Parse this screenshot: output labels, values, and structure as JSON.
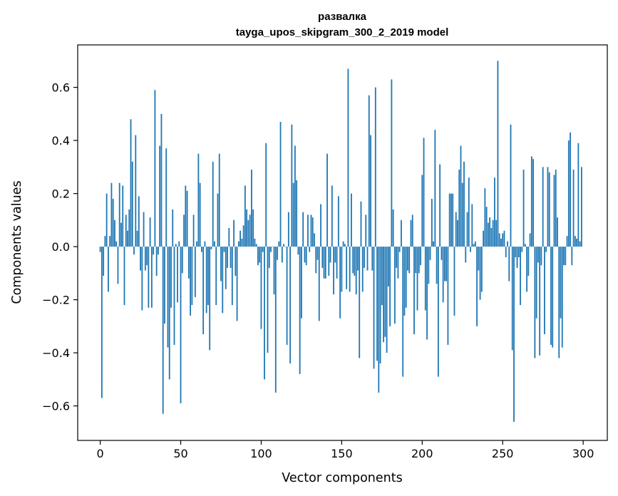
{
  "chart_data": {
    "type": "bar",
    "title_lines": [
      "развалка",
      "tayga_upos_skipgram_300_2_2019 model"
    ],
    "xlabel": "Vector components",
    "ylabel": "Components values",
    "xlim": [
      -14,
      315
    ],
    "ylim": [
      -0.73,
      0.76
    ],
    "xticks": [
      0,
      50,
      100,
      150,
      200,
      250,
      300
    ],
    "yticks": [
      -0.6,
      -0.4,
      -0.2,
      0.0,
      0.2,
      0.4,
      0.6
    ],
    "ytick_labels": [
      "−0.6",
      "−0.4",
      "−0.2",
      "0.0",
      "0.2",
      "0.4",
      "0.6"
    ],
    "grid": false,
    "bar_color": "#1f77b4",
    "values": [
      -0.02,
      -0.57,
      -0.11,
      0.04,
      0.2,
      -0.17,
      0.04,
      0.24,
      0.18,
      0.1,
      0.02,
      -0.14,
      0.24,
      0.09,
      0.23,
      -0.22,
      0.12,
      0.06,
      0.14,
      0.48,
      0.32,
      -0.03,
      0.42,
      0.06,
      0.19,
      -0.09,
      -0.24,
      0.13,
      -0.09,
      -0.07,
      -0.23,
      0.11,
      -0.23,
      -0.03,
      0.59,
      -0.11,
      -0.03,
      0.38,
      0.5,
      -0.63,
      -0.29,
      0.37,
      -0.38,
      -0.5,
      -0.23,
      0.14,
      -0.37,
      0.01,
      -0.21,
      0.02,
      -0.59,
      -0.1,
      0.12,
      0.23,
      0.21,
      -0.12,
      -0.26,
      -0.22,
      0.12,
      -0.19,
      0.02,
      0.35,
      0.24,
      -0.02,
      -0.33,
      0.02,
      -0.25,
      -0.22,
      -0.39,
      -0.01,
      0.32,
      0.02,
      -0.22,
      0.2,
      0.35,
      -0.13,
      -0.25,
      -0.02,
      -0.16,
      -0.08,
      0.07,
      -0.08,
      -0.22,
      0.1,
      -0.11,
      -0.28,
      0.02,
      0.06,
      0.03,
      0.08,
      0.23,
      0.14,
      0.1,
      0.12,
      0.29,
      0.14,
      0.03,
      0.01,
      -0.07,
      -0.06,
      -0.31,
      -0.02,
      -0.5,
      0.39,
      -0.4,
      -0.08,
      -0.02,
      0.0,
      -0.18,
      -0.55,
      -0.05,
      0.02,
      0.47,
      -0.06,
      0.01,
      0.0,
      -0.37,
      0.13,
      -0.44,
      0.46,
      0.24,
      0.38,
      0.25,
      -0.03,
      -0.48,
      -0.27,
      0.13,
      -0.06,
      -0.07,
      0.12,
      -0.02,
      0.12,
      0.11,
      0.05,
      -0.1,
      -0.05,
      -0.28,
      0.16,
      -0.08,
      -0.12,
      -0.12,
      0.35,
      -0.11,
      -0.06,
      0.23,
      -0.18,
      -0.06,
      -0.12,
      0.19,
      -0.27,
      -0.17,
      0.02,
      0.01,
      -0.16,
      0.67,
      -0.17,
      0.2,
      -0.1,
      -0.11,
      -0.18,
      -0.09,
      -0.42,
      0.17,
      -0.17,
      -0.08,
      0.12,
      -0.09,
      0.57,
      0.42,
      -0.09,
      -0.46,
      0.6,
      -0.43,
      -0.55,
      -0.44,
      -0.22,
      -0.36,
      -0.34,
      -0.4,
      -0.15,
      -0.3,
      0.63,
      0.14,
      -0.29,
      -0.08,
      -0.12,
      -0.02,
      0.1,
      -0.49,
      -0.26,
      -0.23,
      -0.09,
      -0.1,
      0.1,
      0.12,
      -0.33,
      -0.1,
      -0.24,
      -0.1,
      -0.07,
      0.27,
      0.41,
      -0.24,
      -0.35,
      -0.14,
      -0.05,
      0.18,
      0.02,
      0.44,
      -0.14,
      -0.49,
      0.31,
      -0.05,
      -0.21,
      -0.13,
      -0.13,
      -0.37,
      0.2,
      0.2,
      0.2,
      -0.26,
      0.13,
      0.1,
      0.29,
      0.38,
      0.24,
      0.32,
      -0.06,
      0.13,
      0.26,
      -0.02,
      0.16,
      0.01,
      0.02,
      -0.3,
      -0.09,
      -0.2,
      -0.17,
      0.06,
      0.22,
      0.15,
      0.09,
      0.11,
      0.07,
      0.1,
      0.26,
      0.1,
      0.7,
      0.05,
      0.03,
      0.05,
      0.06,
      -0.04,
      0.02,
      -0.13,
      0.46,
      -0.39,
      -0.66,
      -0.04,
      -0.08,
      -0.04,
      -0.22,
      -0.02,
      0.29,
      0.01,
      -0.17,
      -0.11,
      0.05,
      0.34,
      0.33,
      -0.42,
      -0.27,
      -0.06,
      -0.41,
      -0.07,
      0.3,
      -0.33,
      -0.02,
      0.3,
      0.28,
      -0.37,
      -0.38,
      0.27,
      0.29,
      0.11,
      -0.42,
      -0.27,
      -0.38,
      -0.07,
      -0.07,
      0.04,
      0.4,
      0.43,
      -0.07,
      0.29,
      0.04,
      0.03,
      0.39,
      0.02,
      0.3
    ]
  }
}
